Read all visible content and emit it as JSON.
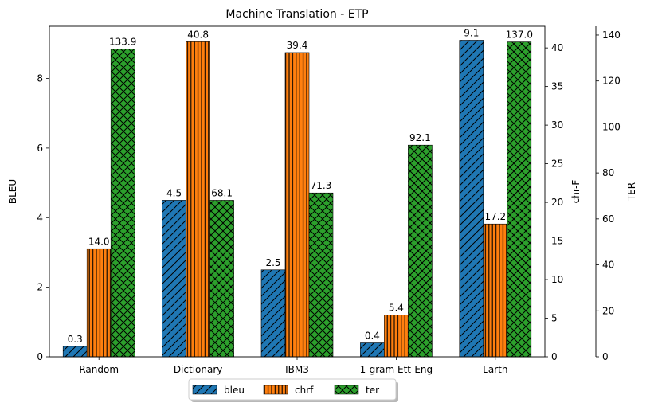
{
  "chart_data": {
    "type": "bar",
    "title": "Machine Translation - ETP",
    "categories": [
      "Random",
      "Dictionary",
      "IBM3",
      "1-gram Ett-Eng",
      "Larth"
    ],
    "series": [
      {
        "name": "bleu",
        "axis": "left",
        "values": [
          0.3,
          4.5,
          2.5,
          0.4,
          9.1
        ],
        "color": "#1f77b4",
        "hatch": "diagonal"
      },
      {
        "name": "chrf",
        "axis": "right1",
        "values": [
          14.0,
          40.8,
          39.4,
          5.4,
          17.2
        ],
        "color": "#ff7f0e",
        "hatch": "vertical"
      },
      {
        "name": "ter",
        "axis": "right2",
        "values": [
          133.9,
          68.1,
          71.3,
          92.1,
          137.0
        ],
        "color": "#2ca02c",
        "hatch": "crosshatch"
      }
    ],
    "labels": [
      [
        "0.3",
        "4.5",
        "2.5",
        "0.4",
        "9.1"
      ],
      [
        "14.0",
        "40.8",
        "39.4",
        "5.4",
        "17.2"
      ],
      [
        "133.9",
        "68.1",
        "71.3",
        "92.1",
        "137.0"
      ]
    ],
    "axes": {
      "left": {
        "label": "BLEU",
        "ylim": [
          0,
          9.5
        ],
        "ticks": [
          0,
          2,
          4,
          6,
          8
        ]
      },
      "right1": {
        "label": "chr-F",
        "ylim": [
          0,
          42.8
        ],
        "ticks": [
          0,
          5,
          10,
          15,
          20,
          25,
          30,
          35,
          40
        ]
      },
      "right2": {
        "label": "TER",
        "ylim": [
          0,
          143.8
        ],
        "ticks": [
          0,
          20,
          40,
          60,
          80,
          100,
          120,
          140
        ]
      }
    },
    "legend": {
      "placement": "bottom-center",
      "columns": 3
    },
    "grid": false
  }
}
